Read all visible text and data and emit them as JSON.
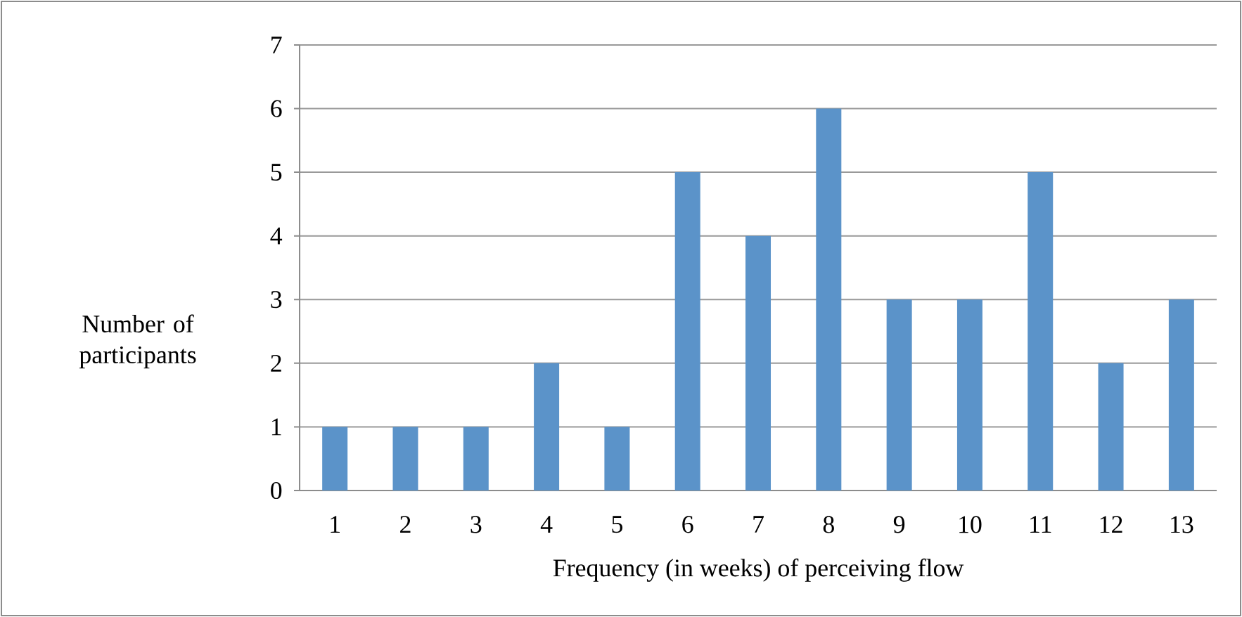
{
  "chart_data": {
    "type": "bar",
    "xlabel": "Frequency (in weeks) of perceiving flow",
    "ylabel": "Number of participants",
    "categories": [
      "1",
      "2",
      "3",
      "4",
      "5",
      "6",
      "7",
      "8",
      "9",
      "10",
      "11",
      "12",
      "13"
    ],
    "values": [
      1,
      1,
      1,
      2,
      1,
      5,
      4,
      6,
      3,
      3,
      5,
      2,
      3
    ],
    "color": "#5b93c9",
    "ylim": [
      0,
      7
    ],
    "yticks": [
      0,
      1,
      2,
      3,
      4,
      5,
      6,
      7
    ],
    "grid": "y"
  }
}
